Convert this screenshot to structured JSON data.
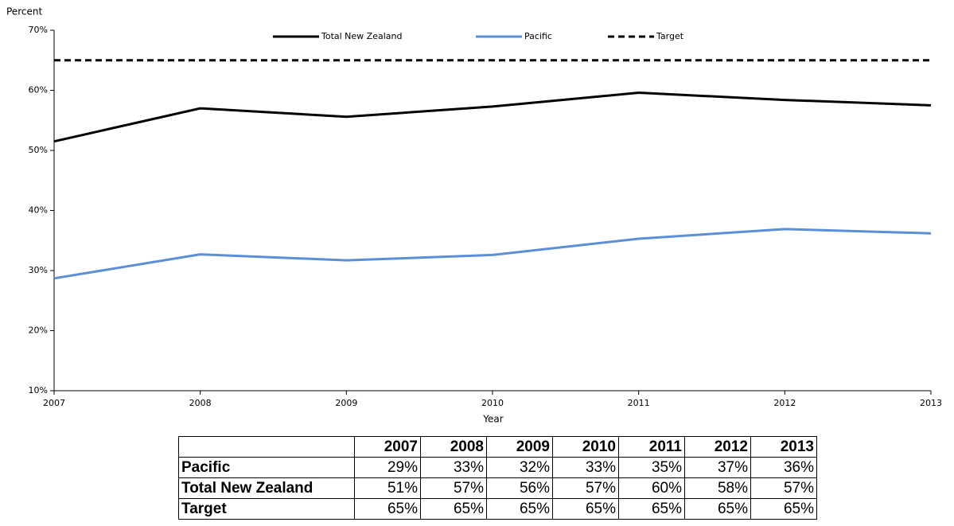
{
  "chart_data": {
    "type": "line",
    "y_label": "Percent",
    "x_label": "Year",
    "x": [
      2007,
      2008,
      2009,
      2010,
      2011,
      2012,
      2013
    ],
    "xlim": [
      2007,
      2013
    ],
    "xticks": [
      2007,
      2008,
      2009,
      2010,
      2011,
      2012,
      2013
    ],
    "ylim": [
      10,
      70
    ],
    "yticks": [
      {
        "value": 10,
        "label": "10%"
      },
      {
        "value": 20,
        "label": "20%"
      },
      {
        "value": 30,
        "label": "30%"
      },
      {
        "value": 40,
        "label": "40%"
      },
      {
        "value": 50,
        "label": "50%"
      },
      {
        "value": 60,
        "label": "60%"
      },
      {
        "value": 70,
        "label": "70%"
      }
    ],
    "grid": false,
    "legend": "top",
    "series": [
      {
        "name": "Total New Zealand",
        "color": "#000000",
        "dash": false,
        "values": [
          51.5,
          57.0,
          55.6,
          57.3,
          59.6,
          58.4,
          57.5
        ]
      },
      {
        "name": "Pacific",
        "color": "#5b8fd8",
        "dash": false,
        "values": [
          28.7,
          32.7,
          31.7,
          32.6,
          35.3,
          36.9,
          36.2
        ]
      },
      {
        "name": "Target",
        "color": "#000000",
        "dash": true,
        "values": [
          65,
          65,
          65,
          65,
          65,
          65,
          65
        ]
      }
    ]
  },
  "table": {
    "header": [
      "2007",
      "2008",
      "2009",
      "2010",
      "2011",
      "2012",
      "2013"
    ],
    "rows": [
      [
        "Pacific",
        "29%",
        "33%",
        "32%",
        "33%",
        "35%",
        "37%",
        "36%"
      ],
      [
        "Total New Zealand",
        "51%",
        "57%",
        "56%",
        "57%",
        "60%",
        "58%",
        "57%"
      ],
      [
        "Target",
        "65%",
        "65%",
        "65%",
        "65%",
        "65%",
        "65%",
        "65%"
      ]
    ]
  }
}
